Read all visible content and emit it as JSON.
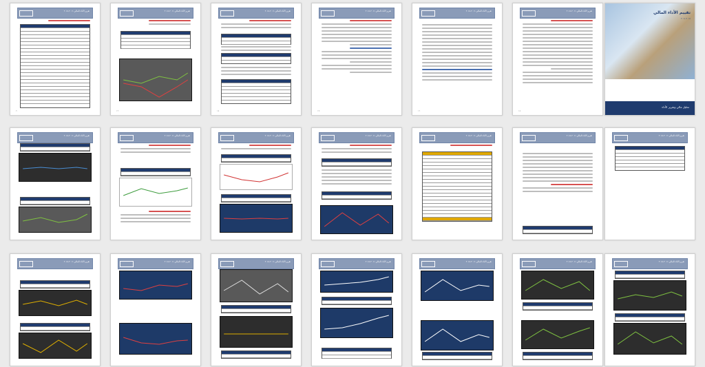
{
  "header_title": "تقرير الأداء المالي ٢٠١١-٢٠١٥",
  "cover": {
    "title": "تقييم الأداء المالي",
    "subtitle": "٢٠١٥-٢٠١١",
    "footer": "تحليل مالي وتقرير الأداء"
  },
  "rows": [
    {
      "pages": [
        "table",
        "table-chart",
        "text-table",
        "text",
        "toc",
        "text",
        "cover"
      ]
    },
    {
      "pages": [
        "chart",
        "chart",
        "chart",
        "chart",
        "ytable",
        "text",
        "table"
      ]
    },
    {
      "pages": [
        "chart",
        "chart",
        "chart",
        "chart",
        "chart",
        "chart",
        "chart"
      ]
    }
  ]
}
